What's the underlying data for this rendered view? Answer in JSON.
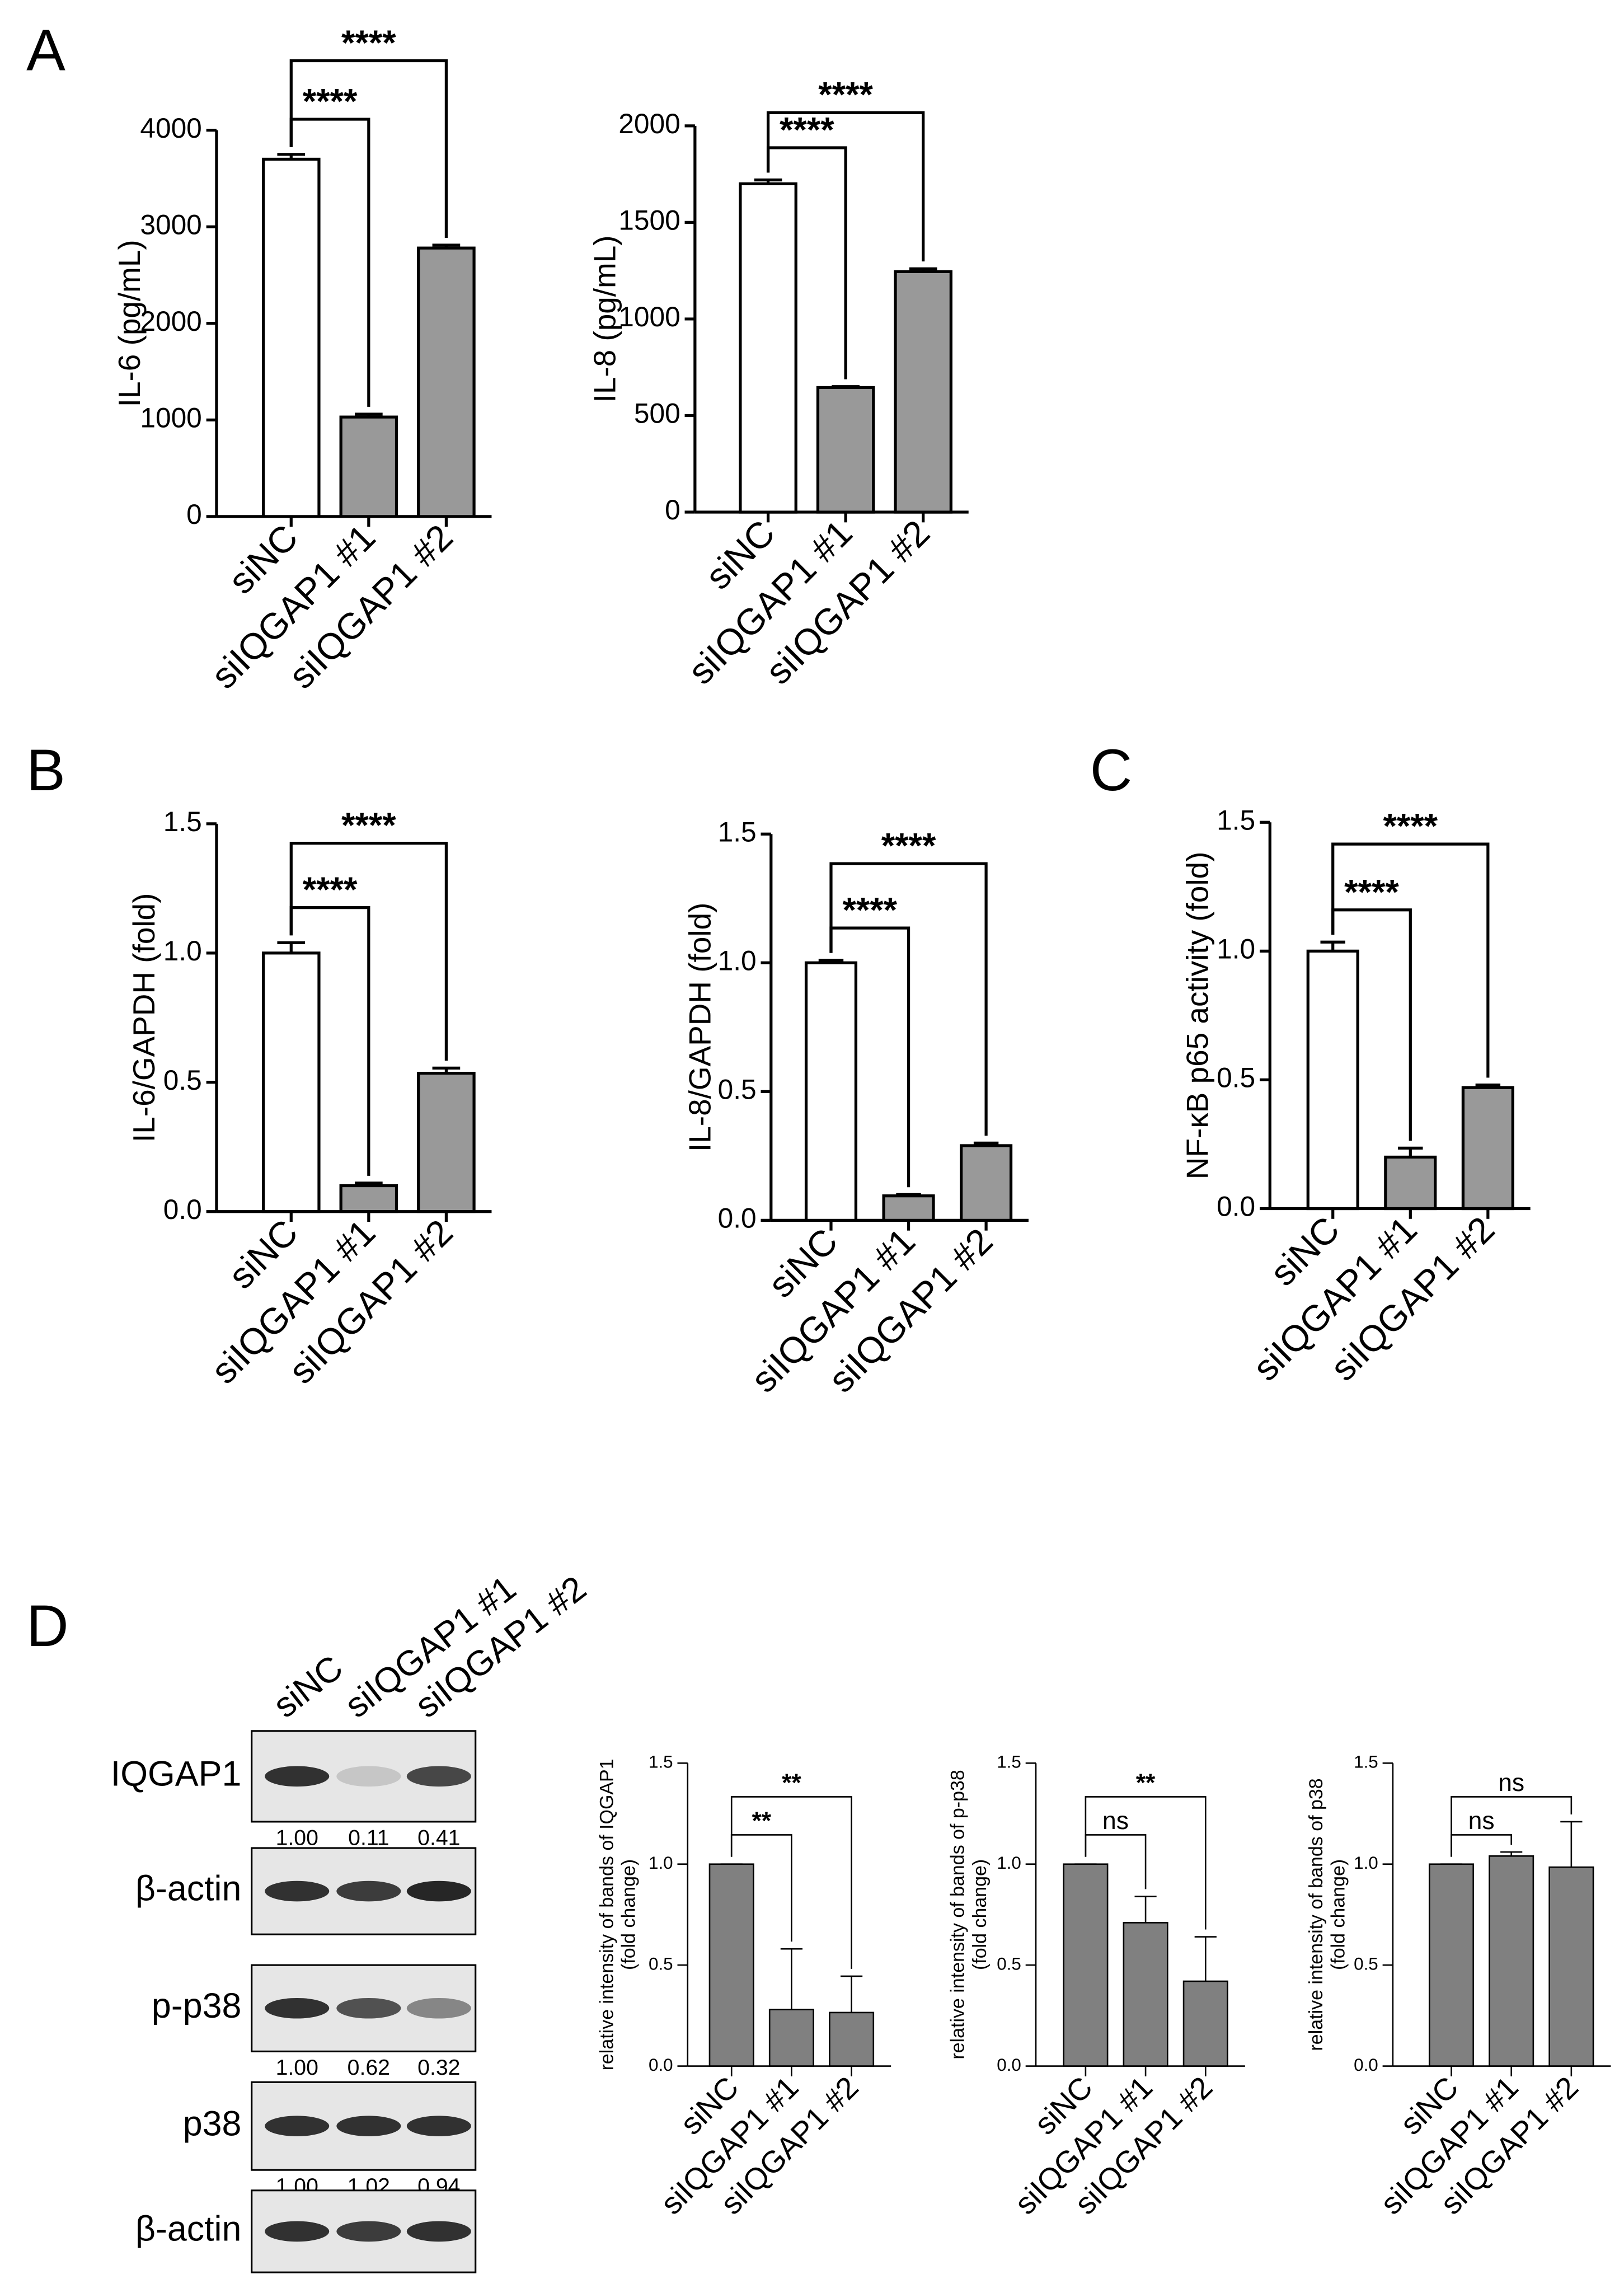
{
  "panel_labels": [
    "A",
    "B",
    "C",
    "D"
  ],
  "blot": {
    "lanes": [
      "siNC",
      "siIQGAP1 #1",
      "siIQGAP1 #2"
    ],
    "rows": [
      {
        "label": "IQGAP1",
        "quant": [
          "1.00",
          "0.11",
          "0.41"
        ]
      },
      {
        "label": "β-actin"
      },
      {
        "label": "p-p38",
        "quant": [
          "1.00",
          "0.62",
          "0.32"
        ]
      },
      {
        "label": "p38",
        "quant": [
          "1.00",
          "1.02",
          "0.94"
        ]
      },
      {
        "label": "β-actin"
      }
    ]
  },
  "chart_data": [
    {
      "type": "bar",
      "ylabel": [
        "IL-6 (pg/mL)"
      ],
      "categories": [
        "siNC",
        "siIQGAP1 #1",
        "siIQGAP1 #2"
      ],
      "values": [
        3700,
        1030,
        2780
      ],
      "errors": [
        50,
        30,
        30
      ],
      "colors": [
        "#ffffff",
        "#999999",
        "#999999"
      ],
      "ylim": [
        0,
        4000
      ],
      "yticks": [
        0,
        1000,
        2000,
        3000,
        4000
      ],
      "significance": [
        {
          "to": 1,
          "label": "****"
        },
        {
          "to": 2,
          "label": "****"
        }
      ]
    },
    {
      "type": "bar",
      "ylabel": [
        "IL-8 (pg/mL)"
      ],
      "categories": [
        "siNC",
        "siIQGAP1 #1",
        "siIQGAP1 #2"
      ],
      "values": [
        1700,
        645,
        1245
      ],
      "errors": [
        20,
        5,
        15
      ],
      "colors": [
        "#ffffff",
        "#999999",
        "#999999"
      ],
      "ylim": [
        0,
        2000
      ],
      "yticks": [
        0,
        500,
        1000,
        1500,
        2000
      ],
      "significance": [
        {
          "to": 1,
          "label": "****"
        },
        {
          "to": 2,
          "label": "****"
        }
      ]
    },
    {
      "type": "bar",
      "ylabel": [
        "IL-6/GAPDH (fold)"
      ],
      "categories": [
        "siNC",
        "siIQGAP1 #1",
        "siIQGAP1 #2"
      ],
      "values": [
        1.0,
        0.1,
        0.535
      ],
      "errors": [
        0.04,
        0.01,
        0.02
      ],
      "colors": [
        "#ffffff",
        "#999999",
        "#999999"
      ],
      "ylim": [
        0,
        1.5
      ],
      "yticks": [
        {
          "value": 0,
          "label": "0.0"
        },
        {
          "value": 0.5,
          "label": "0.5"
        },
        {
          "value": 1,
          "label": "1.0"
        },
        {
          "value": 1.5,
          "label": "1.5"
        }
      ],
      "significance": [
        {
          "to": 1,
          "label": "****"
        },
        {
          "to": 2,
          "label": "****"
        }
      ]
    },
    {
      "type": "bar",
      "ylabel": [
        "IL-8/GAPDH (fold)"
      ],
      "categories": [
        "siNC",
        "siIQGAP1 #1",
        "siIQGAP1 #2"
      ],
      "values": [
        1.0,
        0.095,
        0.29
      ],
      "errors": [
        0.01,
        0.005,
        0.01
      ],
      "colors": [
        "#ffffff",
        "#999999",
        "#999999"
      ],
      "ylim": [
        0,
        1.5
      ],
      "yticks": [
        {
          "value": 0,
          "label": "0.0"
        },
        {
          "value": 0.5,
          "label": "0.5"
        },
        {
          "value": 1,
          "label": "1.0"
        },
        {
          "value": 1.5,
          "label": "1.5"
        }
      ],
      "significance": [
        {
          "to": 1,
          "label": "****"
        },
        {
          "to": 2,
          "label": "****"
        }
      ]
    },
    {
      "type": "bar",
      "ylabel": [
        "NF-κB p65 activity (fold)"
      ],
      "categories": [
        "siNC",
        "siIQGAP1 #1",
        "siIQGAP1 #2"
      ],
      "values": [
        1.0,
        0.2,
        0.47
      ],
      "errors": [
        0.035,
        0.035,
        0.01
      ],
      "colors": [
        "#ffffff",
        "#999999",
        "#999999"
      ],
      "ylim": [
        0,
        1.5
      ],
      "yticks": [
        {
          "value": 0,
          "label": "0.0"
        },
        {
          "value": 0.5,
          "label": "0.5"
        },
        {
          "value": 1,
          "label": "1.0"
        },
        {
          "value": 1.5,
          "label": "1.5"
        }
      ],
      "significance": [
        {
          "to": 1,
          "label": "****"
        },
        {
          "to": 2,
          "label": "****"
        }
      ]
    },
    {
      "type": "bar",
      "ylabel": [
        "relative intensity of bands of IQGAP1",
        "(fold change)"
      ],
      "categories": [
        "siNC",
        "siIQGAP1 #1",
        "siIQGAP1 #2"
      ],
      "values": [
        1.0,
        0.28,
        0.265
      ],
      "errors": [
        0,
        0.3,
        0.18
      ],
      "colors": [
        "#808080",
        "#808080",
        "#808080"
      ],
      "ylim": [
        0,
        1.5
      ],
      "yticks": [
        {
          "value": 0,
          "label": "0.0"
        },
        {
          "value": 0.5,
          "label": "0.5"
        },
        {
          "value": 1,
          "label": "1.0"
        },
        {
          "value": 1.5,
          "label": "1.5"
        }
      ],
      "significance": [
        {
          "to": 1,
          "label": "**"
        },
        {
          "to": 2,
          "label": "**"
        }
      ]
    },
    {
      "type": "bar",
      "ylabel": [
        "relative intensity of bands of p-p38",
        "(fold change)"
      ],
      "categories": [
        "siNC",
        "siIQGAP1 #1",
        "siIQGAP1 #2"
      ],
      "values": [
        1.0,
        0.71,
        0.42
      ],
      "errors": [
        0,
        0.13,
        0.22
      ],
      "colors": [
        "#808080",
        "#808080",
        "#808080"
      ],
      "ylim": [
        0,
        1.5
      ],
      "yticks": [
        {
          "value": 0,
          "label": "0.0"
        },
        {
          "value": 0.5,
          "label": "0.5"
        },
        {
          "value": 1,
          "label": "1.0"
        },
        {
          "value": 1.5,
          "label": "1.5"
        }
      ],
      "significance": [
        {
          "to": 1,
          "label": "ns"
        },
        {
          "to": 2,
          "label": "**"
        }
      ]
    },
    {
      "type": "bar",
      "ylabel": [
        "relative intensity of bands of p38",
        "(fold change)"
      ],
      "categories": [
        "siNC",
        "siIQGAP1 #1",
        "siIQGAP1 #2"
      ],
      "values": [
        1.0,
        1.04,
        0.985
      ],
      "errors": [
        0,
        0.02,
        0.225
      ],
      "colors": [
        "#808080",
        "#808080",
        "#808080"
      ],
      "ylim": [
        0,
        1.5
      ],
      "yticks": [
        {
          "value": 0,
          "label": "0.0"
        },
        {
          "value": 0.5,
          "label": "0.5"
        },
        {
          "value": 1,
          "label": "1.0"
        },
        {
          "value": 1.5,
          "label": "1.5"
        }
      ],
      "significance": [
        {
          "to": 1,
          "label": "ns"
        },
        {
          "to": 2,
          "label": "ns"
        }
      ]
    }
  ]
}
